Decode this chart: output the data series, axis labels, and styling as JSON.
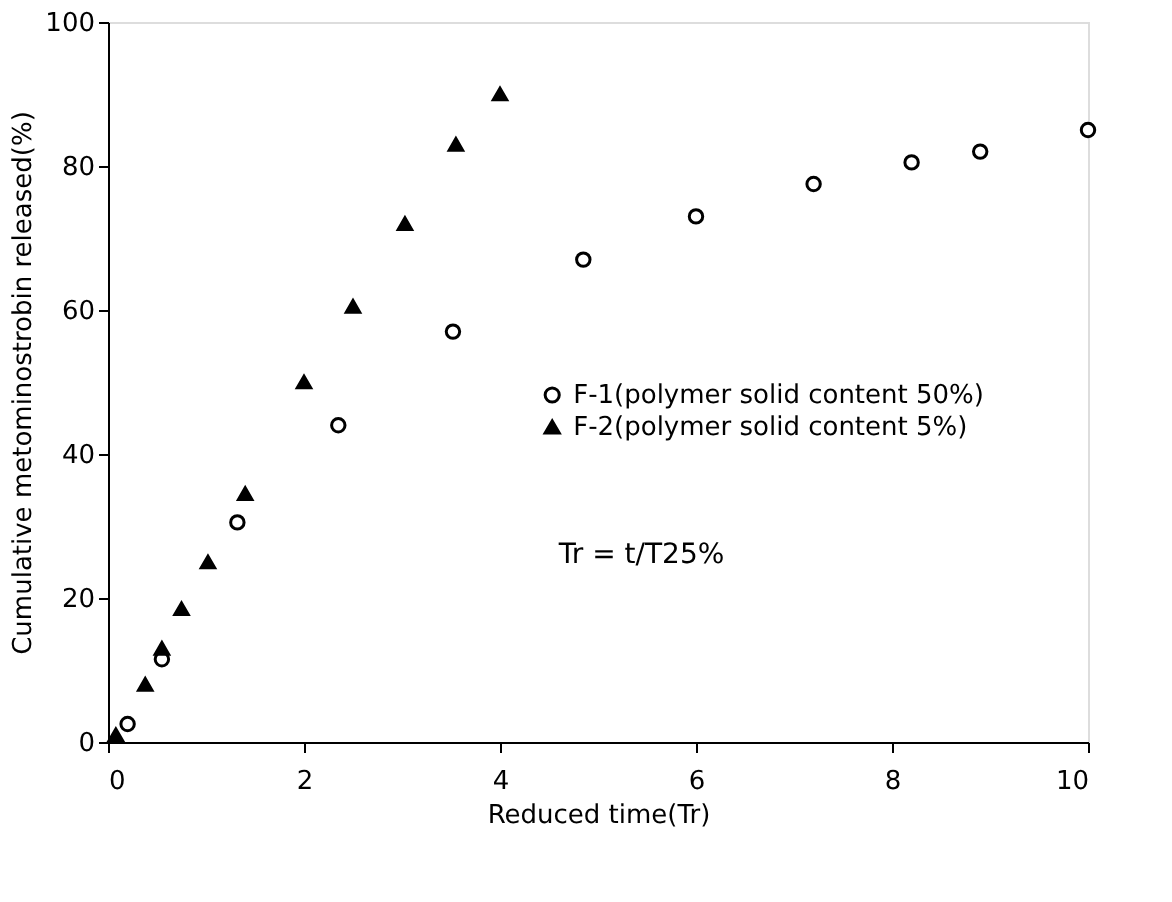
{
  "chart_data": {
    "type": "scatter",
    "xlabel": "Reduced time(Tr)",
    "ylabel": "Cumulative metominostrobin released(%)",
    "xlim": [
      0,
      10
    ],
    "ylim": [
      0,
      100
    ],
    "xticks": [
      0,
      2,
      4,
      6,
      8,
      10
    ],
    "yticks": [
      0,
      20,
      40,
      60,
      80,
      100
    ],
    "grid": false,
    "legend": "right",
    "series": [
      {
        "name": "F-1(polymer solid content 50%)",
        "color": "#000000",
        "marker": "circle",
        "x": [
          0.2,
          0.55,
          1.32,
          2.35,
          3.52,
          4.85,
          6.0,
          7.2,
          8.2,
          8.9,
          10
        ],
        "values": [
          2.5,
          11.5,
          30.5,
          44,
          57,
          67,
          73,
          77.5,
          80.5,
          82,
          85
        ]
      },
      {
        "name": "F-2(polymer solid content 5%)",
        "color": "#000000",
        "marker": "triangle",
        "x": [
          0.08,
          0.38,
          0.55,
          0.75,
          1.02,
          1.4,
          2.0,
          2.5,
          3.03,
          3.55,
          4.0
        ],
        "values": [
          1,
          8,
          13,
          18.5,
          25,
          34.5,
          50,
          60.5,
          72,
          83,
          90
        ]
      }
    ],
    "annotations": [
      {
        "text": "Tr = t/T25%"
      }
    ]
  }
}
